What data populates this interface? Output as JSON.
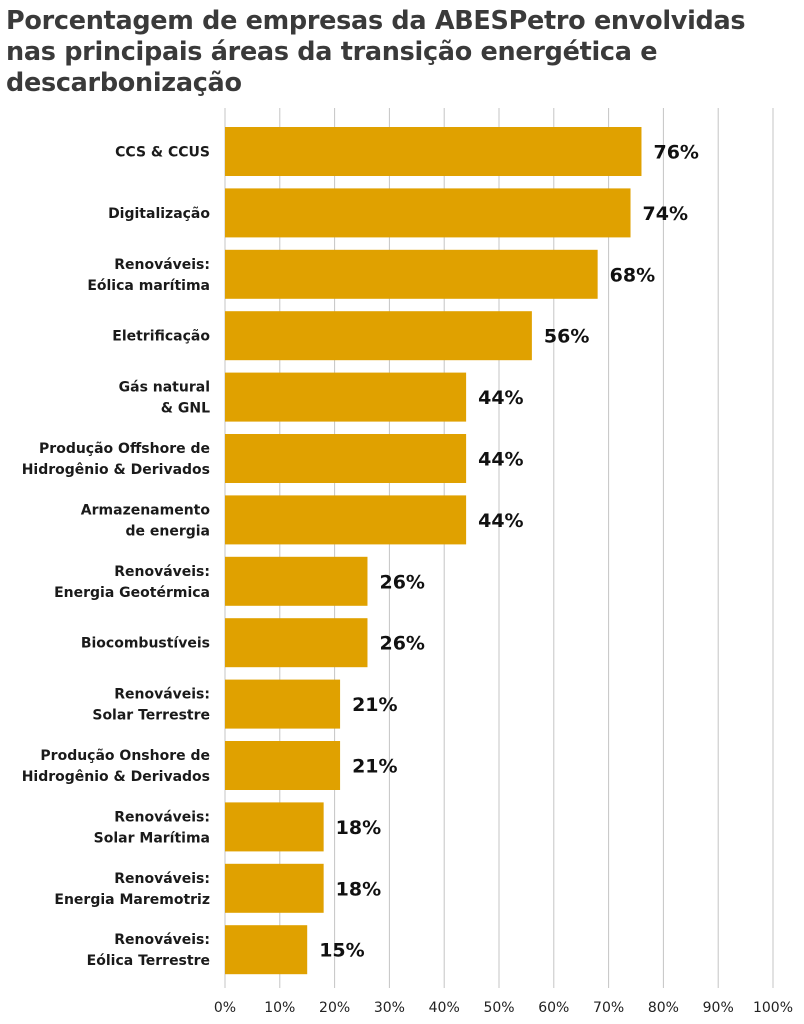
{
  "chart_data": {
    "type": "bar",
    "orientation": "horizontal",
    "title": "Porcentagem de empresas da ABESPetro envolvidas nas principais áreas da transição energética e descarbonização",
    "categories": [
      "CCS & CCUS",
      "Digitalização",
      "Renováveis:\nEólica marítima",
      "Eletrificação",
      "Gás natural\n& GNL",
      "Produção Offshore de\nHidrogênio & Derivados",
      "Armazenamento\nde energia",
      "Renováveis:\nEnergia Geotérmica",
      "Biocombustíveis",
      "Renováveis:\nSolar Terrestre",
      "Produção Onshore de\nHidrogênio & Derivados",
      "Renováveis:\nSolar Marítima",
      "Renováveis:\nEnergia Maremotriz",
      "Renováveis:\nEólica Terrestre"
    ],
    "values": [
      76,
      74,
      68,
      56,
      44,
      44,
      44,
      26,
      26,
      21,
      21,
      18,
      18,
      15
    ],
    "value_labels": [
      "76%",
      "74%",
      "68%",
      "56%",
      "44%",
      "44%",
      "44%",
      "26%",
      "26%",
      "21%",
      "21%",
      "18%",
      "18%",
      "15%"
    ],
    "xlim": [
      0,
      100
    ],
    "xticks": [
      0,
      10,
      20,
      30,
      40,
      50,
      60,
      70,
      80,
      90,
      100
    ],
    "xtick_labels": [
      "0%",
      "10%",
      "20%",
      "30%",
      "40%",
      "50%",
      "60%",
      "70%",
      "80%",
      "90%",
      "100%"
    ],
    "xlabel": "",
    "ylabel": "",
    "grid": "vertical",
    "legend": "none",
    "bar_color": "#e0a100"
  }
}
